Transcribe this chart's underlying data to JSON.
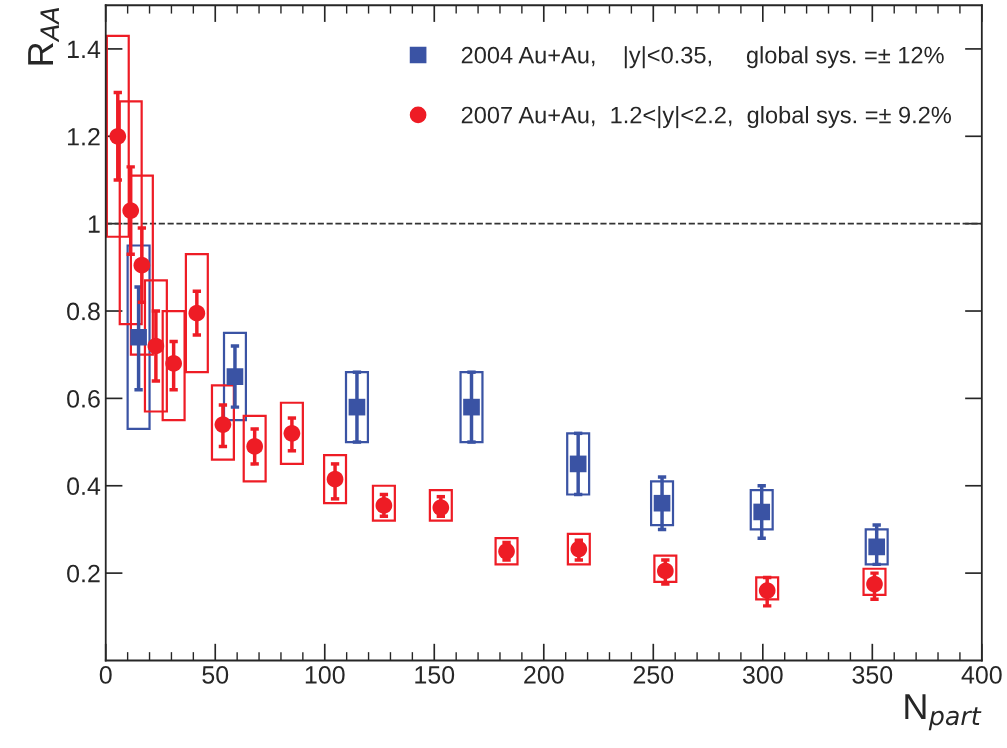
{
  "chart_data": {
    "type": "scatter",
    "xlabel": "N$_{part}$",
    "ylabel": "R$_{AA}$",
    "xlim": [
      0,
      400
    ],
    "ylim": [
      0,
      1.5
    ],
    "xticks": [
      {
        "value": 0,
        "label": "0"
      },
      50,
      100,
      150,
      200,
      250,
      300,
      350,
      400
    ],
    "yticks": [
      0.2,
      0.4,
      0.6,
      0.8,
      {
        "value": 1,
        "label": "1"
      },
      1.2,
      1.4
    ],
    "grid": false,
    "legend": "top right",
    "ref_lines": [
      {
        "axis": "y",
        "value": 1,
        "color": "#333333",
        "line_style": "dashed"
      }
    ],
    "series": [
      {
        "type": "bar",
        "color": "#3a53a4",
        "x": [
          15,
          59,
          114.7,
          167,
          215.7,
          254,
          299.5,
          352
        ],
        "base": [
          0.53,
          0.55,
          0.5,
          0.5,
          0.38,
          0.31,
          0.3,
          0.22
        ],
        "values": [
          0.42,
          0.2,
          0.16,
          0.16,
          0.14,
          0.1,
          0.09,
          0.08
        ]
      },
      {
        "type": "bar",
        "color": "#ee1c25",
        "x": [
          5.5,
          11.4,
          16.5,
          22.9,
          31,
          41.6,
          53.5,
          68,
          85,
          104.7,
          127,
          153,
          183,
          216,
          255.5,
          302,
          351
        ],
        "base": [
          0.97,
          0.77,
          0.7,
          0.57,
          0.55,
          0.66,
          0.46,
          0.41,
          0.45,
          0.36,
          0.32,
          0.32,
          0.22,
          0.22,
          0.18,
          0.14,
          0.15
        ],
        "values": [
          0.46,
          0.51,
          0.41,
          0.3,
          0.25,
          0.27,
          0.17,
          0.15,
          0.14,
          0.11,
          0.08,
          0.07,
          0.06,
          0.07,
          0.06,
          0.05,
          0.06
        ]
      },
      {
        "name": "2004 Au+Au,    |y|<0.35,     global sys. =± 12%",
        "color": "#3a53a4",
        "marker": "square",
        "x": [
          15,
          59,
          114.7,
          167,
          215.7,
          254,
          299.5,
          352
        ],
        "values": [
          0.74,
          0.65,
          0.58,
          0.58,
          0.45,
          0.36,
          0.34,
          0.26
        ],
        "errors": [
          [
            0.62,
            0.855
          ],
          [
            0.58,
            0.72
          ],
          [
            0.5,
            0.66
          ],
          [
            0.5,
            0.66
          ],
          [
            0.38,
            0.52
          ],
          [
            0.3,
            0.42
          ],
          [
            0.28,
            0.4
          ],
          [
            0.22,
            0.31
          ]
        ]
      },
      {
        "name": "2007 Au+Au,  1.2<|y|<2.2,  global sys. =± 9.2%",
        "color": "#ee1c25",
        "marker": "circle",
        "x": [
          5.5,
          11.4,
          16.5,
          22.9,
          31,
          41.6,
          53.5,
          68,
          85,
          104.7,
          127,
          153,
          183,
          216,
          255.5,
          302,
          351
        ],
        "values": [
          1.2,
          1.03,
          0.905,
          0.72,
          0.68,
          0.795,
          0.54,
          0.49,
          0.52,
          0.415,
          0.355,
          0.35,
          0.25,
          0.255,
          0.205,
          0.16,
          0.175
        ],
        "errors": [
          [
            1.1,
            1.3
          ],
          [
            0.93,
            1.13
          ],
          [
            0.82,
            0.99
          ],
          [
            0.64,
            0.8
          ],
          [
            0.62,
            0.73
          ],
          [
            0.745,
            0.845
          ],
          [
            0.49,
            0.585
          ],
          [
            0.45,
            0.53
          ],
          [
            0.48,
            0.555
          ],
          [
            0.37,
            0.45
          ],
          [
            0.33,
            0.38
          ],
          [
            0.33,
            0.375
          ],
          [
            0.23,
            0.27
          ],
          [
            0.23,
            0.275
          ],
          [
            0.175,
            0.23
          ],
          [
            0.125,
            0.19
          ],
          [
            0.14,
            0.2
          ]
        ]
      }
    ]
  }
}
